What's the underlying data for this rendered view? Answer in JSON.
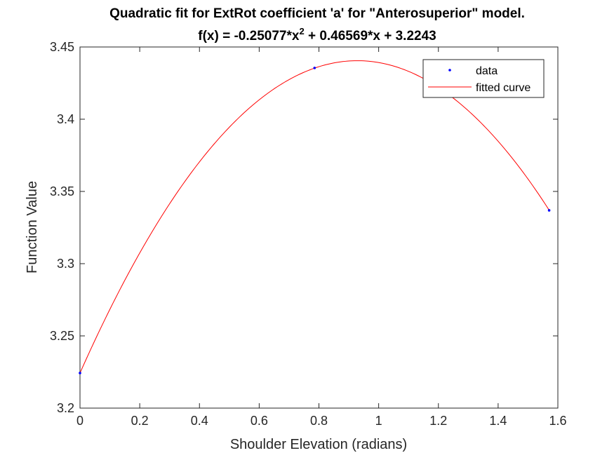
{
  "chart_data": {
    "type": "line",
    "title": "Quadratic fit for ExtRot coefficient 'a' for \"Anterosuperior\" model.",
    "subtitle_parts": [
      "f(x) = -0.25077*x",
      "2",
      " + 0.46569*x + 3.2243"
    ],
    "xlabel": "Shoulder Elevation (radians)",
    "ylabel": "Function Value",
    "xlim": [
      0,
      1.6
    ],
    "ylim": [
      3.2,
      3.45
    ],
    "xticks": [
      0,
      0.2,
      0.4,
      0.6,
      0.8,
      1,
      1.2,
      1.4,
      1.6
    ],
    "xtick_labels": [
      "0",
      "0.2",
      "0.4",
      "0.6",
      "0.8",
      "1",
      "1.2",
      "1.4",
      "1.6"
    ],
    "yticks": [
      3.2,
      3.25,
      3.3,
      3.35,
      3.4,
      3.45
    ],
    "ytick_labels": [
      "3.2",
      "3.25",
      "3.3",
      "3.35",
      "3.4",
      "3.45"
    ],
    "legend_position": "top-right",
    "grid": false,
    "series": [
      {
        "name": "data",
        "kind": "points",
        "color": "#0000ff",
        "x": [
          0,
          0.7854,
          1.5708
        ],
        "y": [
          3.2243,
          3.4355,
          3.3369
        ]
      },
      {
        "name": "fitted curve",
        "kind": "line",
        "color": "#ff0000",
        "coefficients": [
          -0.25077,
          0.46569,
          3.2243
        ],
        "x_range": [
          0,
          1.5708
        ]
      }
    ]
  }
}
